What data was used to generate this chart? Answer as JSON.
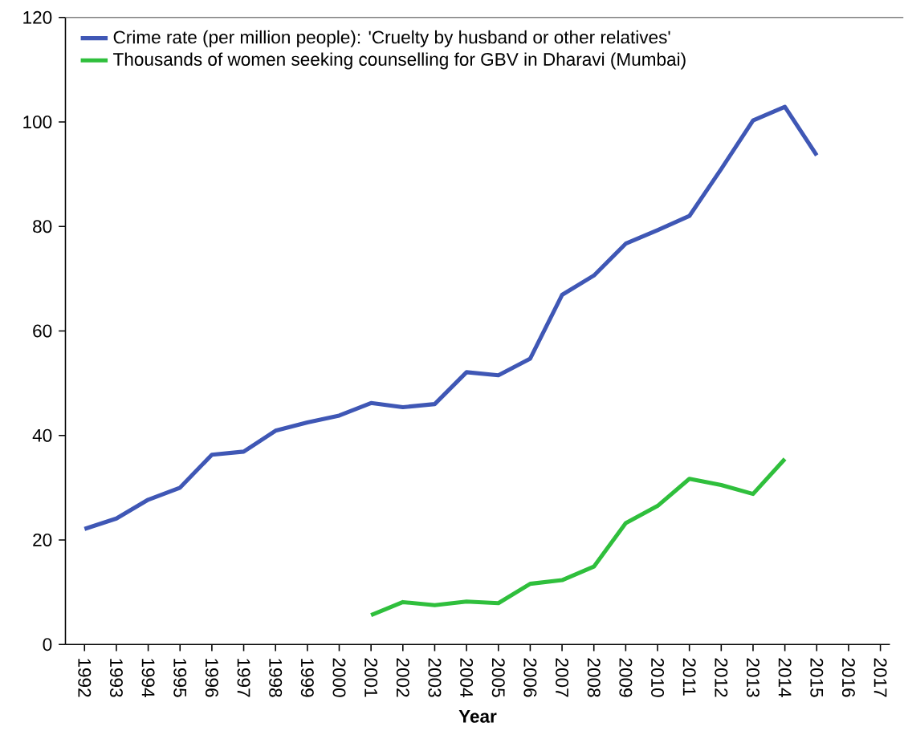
{
  "chart_data": {
    "type": "line",
    "xlabel": "Year",
    "categories": [
      "1992",
      "1993",
      "1994",
      "1995",
      "1996",
      "1997",
      "1998",
      "1999",
      "2000",
      "2001",
      "2002",
      "2003",
      "2004",
      "2005",
      "2006",
      "2007",
      "2008",
      "2009",
      "2010",
      "2011",
      "2012",
      "2013",
      "2014",
      "2015",
      "2016",
      "2017"
    ],
    "series": [
      {
        "name": "Crime rate (per million people): 'Cruelty by husband or other relatives'",
        "color": "#3f57b5",
        "values": [
          22.1,
          24.1,
          27.7,
          30.0,
          36.3,
          36.9,
          40.9,
          42.5,
          43.8,
          46.2,
          45.4,
          46.0,
          52.1,
          51.5,
          54.7,
          66.9,
          70.6,
          76.7,
          79.3,
          82.0,
          91.0,
          100.3,
          102.9,
          93.6,
          null,
          null
        ]
      },
      {
        "name": "Thousands of women seeking counselling for GBV in Dharavi (Mumbai)",
        "color": "#2fbf3c",
        "values": [
          null,
          null,
          null,
          null,
          null,
          null,
          null,
          null,
          null,
          5.6,
          8.1,
          7.5,
          8.2,
          7.9,
          11.6,
          12.3,
          14.9,
          23.2,
          26.5,
          31.7,
          30.5,
          28.8,
          35.5,
          null,
          null,
          null
        ]
      }
    ],
    "ylim": [
      0,
      120
    ],
    "yticks": [
      0,
      20,
      40,
      60,
      80,
      100,
      120
    ],
    "legend": "top left",
    "grid": false,
    "marker": "none",
    "line_style": "solid"
  }
}
